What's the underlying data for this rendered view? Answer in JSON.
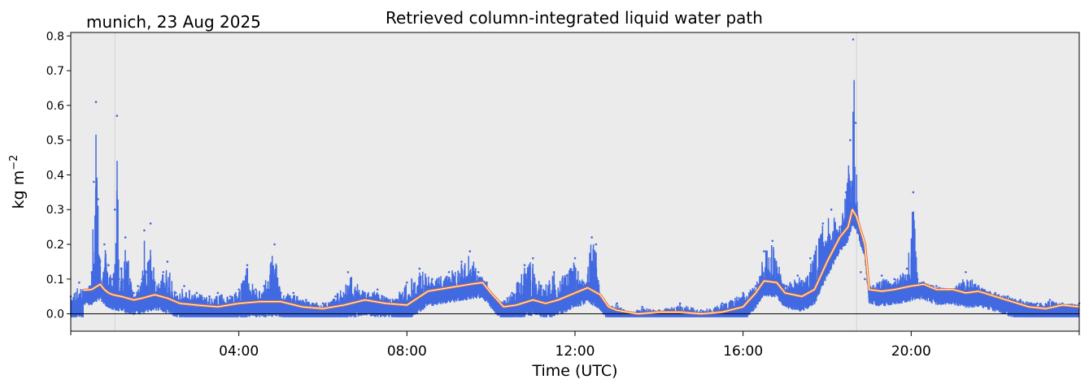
{
  "header": {
    "location_date": "munich, 23 Aug 2025"
  },
  "chart_data": {
    "type": "scatter",
    "title": "Retrieved column-integrated liquid water path",
    "xlabel": "Time (UTC)",
    "ylabel_base": "kg m",
    "ylabel_exp": "−2",
    "xlim_hours": [
      0,
      24
    ],
    "ylim": [
      -0.05,
      0.81
    ],
    "yticks": [
      0.0,
      0.1,
      0.2,
      0.3,
      0.4,
      0.5,
      0.6,
      0.7,
      0.8
    ],
    "ytick_labels": [
      "0.0",
      "0.1",
      "0.2",
      "0.3",
      "0.4",
      "0.5",
      "0.6",
      "0.7",
      "0.8"
    ],
    "xticks_hours": [
      4,
      8,
      12,
      16,
      20
    ],
    "xtick_labels": [
      "04:00",
      "08:00",
      "12:00",
      "16:00",
      "20:00"
    ],
    "minor_xticks_hours": [
      0,
      24
    ],
    "zero_line": true,
    "background_color": "#ebebeb",
    "vertical_markers_hours": [
      1.05,
      18.7
    ],
    "colors": {
      "raw": "#4169e1",
      "smooth_outer": "#e8772e",
      "smooth_inner": "#ffffff"
    },
    "series": [
      {
        "kind": "raw",
        "x": [
          0.0,
          0.2,
          0.4,
          0.5,
          0.55,
          0.6,
          0.65,
          0.7,
          0.75,
          0.8,
          0.9,
          1.0,
          1.05,
          1.1,
          1.15,
          1.2,
          1.3,
          1.5,
          1.6,
          1.7,
          1.75,
          1.8,
          1.9,
          2.0,
          2.2,
          2.3,
          2.5,
          2.7,
          3.0,
          3.3,
          3.5,
          3.8,
          4.0,
          4.2,
          4.4,
          4.6,
          4.85,
          5.0,
          5.3,
          5.6,
          6.0,
          6.3,
          6.6,
          7.0,
          7.3,
          7.6,
          8.0,
          8.3,
          8.6,
          9.0,
          9.3,
          9.5,
          9.7,
          9.9,
          10.0,
          10.2,
          10.5,
          10.8,
          11.0,
          11.2,
          11.5,
          11.8,
          12.0,
          12.2,
          12.4,
          12.5,
          12.6,
          12.8,
          13.0,
          13.3,
          13.6,
          14.0,
          14.5,
          15.0,
          15.5,
          16.0,
          16.3,
          16.5,
          16.7,
          17.0,
          17.3,
          17.6,
          17.9,
          18.1,
          18.3,
          18.45,
          18.55,
          18.62,
          18.68,
          18.75,
          18.8,
          18.9,
          19.1,
          19.3,
          19.6,
          19.9,
          20.05,
          20.15,
          20.3,
          20.6,
          21.0,
          21.3,
          21.6,
          22.0,
          22.3,
          22.6,
          23.0,
          23.3,
          23.6,
          24.0
        ],
        "y": [
          0.05,
          0.09,
          0.06,
          0.12,
          0.38,
          0.61,
          0.33,
          0.15,
          0.08,
          0.2,
          0.14,
          0.1,
          0.3,
          0.57,
          0.1,
          0.13,
          0.22,
          0.06,
          0.08,
          0.1,
          0.24,
          0.12,
          0.26,
          0.09,
          0.12,
          0.15,
          0.06,
          0.08,
          0.06,
          0.05,
          0.06,
          0.05,
          0.07,
          0.14,
          0.07,
          0.08,
          0.2,
          0.06,
          0.06,
          0.04,
          0.03,
          0.05,
          0.12,
          0.06,
          0.07,
          0.04,
          0.09,
          0.13,
          0.1,
          0.12,
          0.15,
          0.18,
          0.12,
          0.09,
          0.05,
          0.03,
          0.06,
          0.14,
          0.16,
          0.08,
          0.12,
          0.11,
          0.16,
          0.09,
          0.22,
          0.2,
          0.05,
          0.02,
          0.03,
          0.0,
          0.02,
          0.01,
          0.03,
          0.01,
          0.03,
          0.06,
          0.08,
          0.18,
          0.21,
          0.08,
          0.11,
          0.16,
          0.26,
          0.3,
          0.25,
          0.35,
          0.5,
          0.79,
          0.55,
          0.25,
          0.12,
          0.1,
          0.08,
          0.11,
          0.1,
          0.13,
          0.35,
          0.1,
          0.09,
          0.08,
          0.07,
          0.12,
          0.08,
          0.06,
          0.05,
          0.04,
          0.03,
          0.04,
          0.03,
          0.03
        ]
      },
      {
        "kind": "smooth",
        "x": [
          0.3,
          0.5,
          0.7,
          0.8,
          0.9,
          1.0,
          1.2,
          1.5,
          1.7,
          2.0,
          2.3,
          2.6,
          3.0,
          3.5,
          4.0,
          4.5,
          5.0,
          5.5,
          6.0,
          6.5,
          7.0,
          7.5,
          8.0,
          8.5,
          9.0,
          9.5,
          9.8,
          10.0,
          10.3,
          10.6,
          11.0,
          11.3,
          11.6,
          12.0,
          12.3,
          12.6,
          12.8,
          13.0,
          13.5,
          14.0,
          14.5,
          15.0,
          15.5,
          16.0,
          16.3,
          16.5,
          16.8,
          17.0,
          17.4,
          17.7,
          18.0,
          18.3,
          18.5,
          18.6,
          18.7,
          18.8,
          18.9,
          19.0,
          19.3,
          19.6,
          20.0,
          20.3,
          20.6,
          21.0,
          21.3,
          21.6,
          22.0,
          22.4,
          22.8,
          23.2,
          23.6,
          24.0
        ],
        "y": [
          0.068,
          0.07,
          0.085,
          0.07,
          0.06,
          0.055,
          0.05,
          0.04,
          0.045,
          0.055,
          0.045,
          0.03,
          0.025,
          0.02,
          0.03,
          0.035,
          0.035,
          0.02,
          0.015,
          0.025,
          0.04,
          0.03,
          0.025,
          0.065,
          0.075,
          0.085,
          0.09,
          0.06,
          0.02,
          0.025,
          0.04,
          0.03,
          0.04,
          0.06,
          0.075,
          0.055,
          0.02,
          0.01,
          0.0,
          0.005,
          0.005,
          0.0,
          0.005,
          0.02,
          0.06,
          0.095,
          0.09,
          0.06,
          0.05,
          0.07,
          0.15,
          0.22,
          0.25,
          0.3,
          0.28,
          0.24,
          0.2,
          0.07,
          0.065,
          0.07,
          0.08,
          0.085,
          0.07,
          0.07,
          0.06,
          0.065,
          0.05,
          0.035,
          0.02,
          0.015,
          0.025,
          0.02
        ]
      }
    ]
  }
}
